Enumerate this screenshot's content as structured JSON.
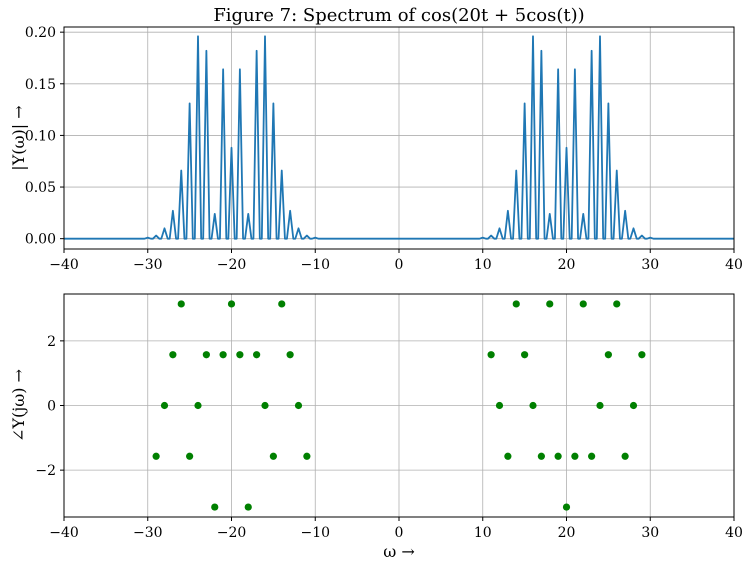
{
  "chart_data": [
    {
      "type": "line",
      "title": "Figure 7: Spectrum of cos(20t + 5cos(t))",
      "xlabel": "",
      "ylabel": "|Y(ω)| →",
      "xlim": [
        -40,
        40
      ],
      "ylim": [
        -0.01,
        0.205
      ],
      "xticks": [
        -40,
        -30,
        -20,
        -10,
        0,
        10,
        20,
        30,
        40
      ],
      "xtick_labels": [
        "−40",
        "−30",
        "−20",
        "−10",
        "0",
        "10",
        "20",
        "30",
        "40"
      ],
      "yticks": [
        0.0,
        0.05,
        0.1,
        0.15,
        0.2
      ],
      "ytick_labels": [
        "0.00",
        "0.05",
        "0.10",
        "0.15",
        "0.20"
      ],
      "grid": true,
      "color": "#1f77b4",
      "series": [
        {
          "x": [
            -30,
            -29,
            -28,
            -27,
            -26,
            -25,
            -24,
            -23,
            -22,
            -21,
            -20,
            -19,
            -18,
            -17,
            -16,
            -15,
            -14,
            -13,
            -12,
            -11,
            -10,
            10,
            11,
            12,
            13,
            14,
            15,
            16,
            17,
            18,
            19,
            20,
            21,
            22,
            23,
            24,
            25,
            26,
            27,
            28,
            29,
            30
          ],
          "y": [
            0.001,
            0.003,
            0.01,
            0.027,
            0.066,
            0.131,
            0.196,
            0.182,
            0.024,
            0.164,
            0.088,
            0.164,
            0.024,
            0.182,
            0.196,
            0.131,
            0.066,
            0.027,
            0.01,
            0.003,
            0.001,
            0.001,
            0.003,
            0.01,
            0.027,
            0.066,
            0.131,
            0.196,
            0.182,
            0.024,
            0.164,
            0.088,
            0.164,
            0.024,
            0.182,
            0.196,
            0.131,
            0.066,
            0.027,
            0.01,
            0.003,
            0.001
          ]
        }
      ]
    },
    {
      "type": "scatter",
      "title": "",
      "xlabel": "ω →",
      "ylabel": "∠Y(jω) →",
      "xlim": [
        -40,
        40
      ],
      "ylim": [
        -3.45,
        3.45
      ],
      "xticks": [
        -40,
        -30,
        -20,
        -10,
        0,
        10,
        20,
        30,
        40
      ],
      "xtick_labels": [
        "−40",
        "−30",
        "−20",
        "−10",
        "0",
        "10",
        "20",
        "30",
        "40"
      ],
      "yticks": [
        -2,
        0,
        2
      ],
      "ytick_labels": [
        "−2",
        "0",
        "2"
      ],
      "grid": true,
      "color": "#008000",
      "series": [
        {
          "x": [
            -29,
            -28,
            -27,
            -26,
            -25,
            -24,
            -23,
            -22,
            -21,
            -20,
            -19,
            -18,
            -17,
            -16,
            -15,
            -14,
            -13,
            -12,
            -11,
            11,
            12,
            13,
            14,
            15,
            16,
            17,
            18,
            19,
            20,
            21,
            22,
            23,
            24,
            25,
            26,
            27,
            28,
            29
          ],
          "y": [
            -1.571,
            0,
            1.571,
            3.142,
            -1.571,
            0,
            1.571,
            -3.142,
            1.571,
            3.142,
            1.571,
            -3.142,
            1.571,
            0,
            -1.571,
            3.142,
            1.571,
            0,
            -1.571,
            1.571,
            0,
            -1.571,
            3.142,
            1.571,
            0,
            -1.571,
            3.142,
            -1.571,
            -3.142,
            -1.571,
            3.142,
            -1.571,
            0,
            1.571,
            3.142,
            -1.571,
            0,
            1.571
          ]
        }
      ]
    }
  ]
}
